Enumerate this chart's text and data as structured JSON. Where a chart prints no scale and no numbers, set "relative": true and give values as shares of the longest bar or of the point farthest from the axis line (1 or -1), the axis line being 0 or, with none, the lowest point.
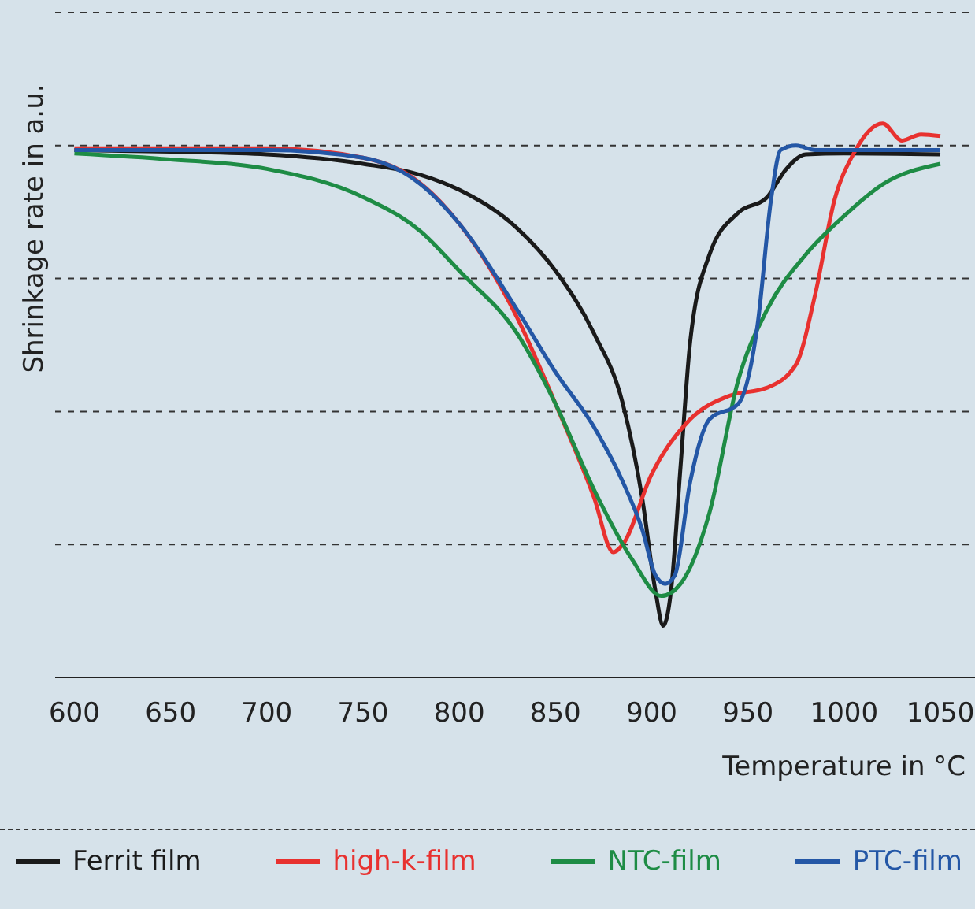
{
  "chart_data": {
    "type": "line",
    "relative": true,
    "xlabel": "Temperature in °C",
    "ylabel": "Shrinkage rate in a.u.",
    "xlim": [
      590,
      1068
    ],
    "xticks": [
      600,
      650,
      700,
      750,
      800,
      850,
      900,
      950,
      1000,
      1050
    ],
    "grid": "y",
    "legend": "bottom",
    "marker": "none",
    "line_style": "solid",
    "series": [
      {
        "name": "Ferrit film",
        "color": "#1a1a1a",
        "x": [
          600,
          650,
          700,
          750,
          780,
          800,
          830,
          850,
          870,
          885,
          895,
          902,
          906,
          910,
          915,
          920,
          930,
          945,
          960,
          970,
          980,
          1000,
          1050
        ],
        "values": [
          0.952,
          0.949,
          0.944,
          0.927,
          0.907,
          0.88,
          0.811,
          0.734,
          0.621,
          0.494,
          0.325,
          0.155,
          0.093,
          0.155,
          0.381,
          0.606,
          0.763,
          0.839,
          0.867,
          0.918,
          0.944,
          0.946,
          0.944
        ]
      },
      {
        "name": "high-k-film",
        "color": "#e8312f",
        "x": [
          600,
          700,
          750,
          775,
          800,
          830,
          850,
          870,
          880,
          885,
          900,
          920,
          940,
          960,
          975,
          985,
          995,
          1005,
          1020,
          1030,
          1040,
          1050
        ],
        "values": [
          0.955,
          0.955,
          0.938,
          0.904,
          0.819,
          0.65,
          0.494,
          0.325,
          0.226,
          0.24,
          0.367,
          0.466,
          0.508,
          0.523,
          0.565,
          0.692,
          0.862,
          0.946,
          1,
          0.969,
          0.98,
          0.977
        ]
      },
      {
        "name": "NTC-film",
        "color": "#1e8c45",
        "x": [
          600,
          650,
          700,
          750,
          780,
          800,
          830,
          850,
          870,
          890,
          905,
          915,
          930,
          945,
          960,
          980,
          1000,
          1020,
          1050
        ],
        "values": [
          0.946,
          0.935,
          0.918,
          0.867,
          0.805,
          0.734,
          0.621,
          0.494,
          0.339,
          0.212,
          0.147,
          0.169,
          0.297,
          0.537,
          0.664,
          0.763,
          0.833,
          0.89,
          0.927
        ]
      },
      {
        "name": "PTC-film",
        "color": "#2457a6",
        "x": [
          600,
          700,
          750,
          780,
          800,
          830,
          850,
          870,
          885,
          895,
          902,
          907,
          912,
          920,
          930,
          945,
          955,
          962,
          967,
          975,
          985,
          1050
        ],
        "values": [
          0.952,
          0.952,
          0.938,
          0.89,
          0.819,
          0.664,
          0.551,
          0.452,
          0.353,
          0.268,
          0.184,
          0.169,
          0.184,
          0.353,
          0.466,
          0.494,
          0.636,
          0.862,
          0.952,
          0.96,
          0.952,
          0.952
        ]
      }
    ]
  }
}
